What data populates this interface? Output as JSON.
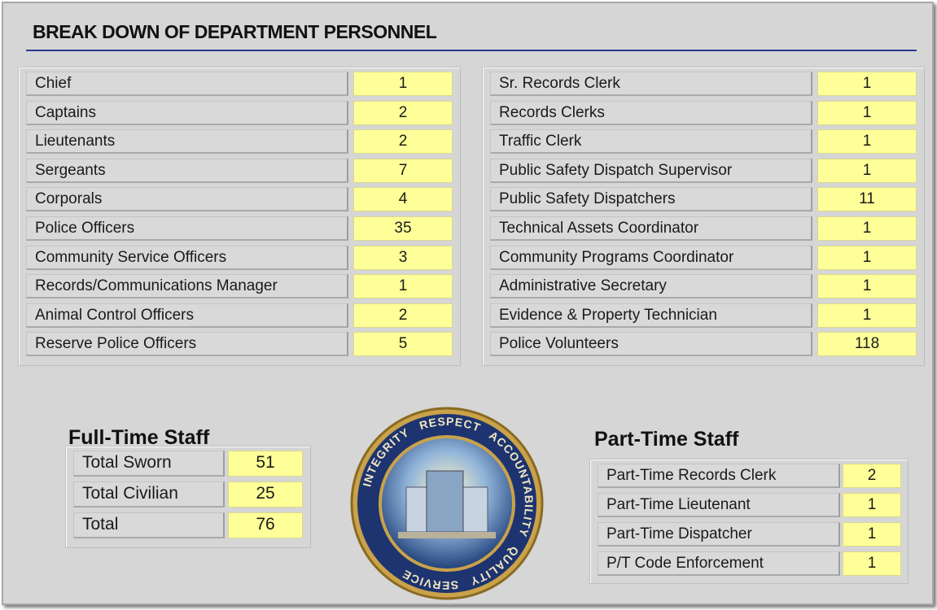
{
  "header": {
    "title": "BREAK DOWN OF DEPARTMENT PERSONNEL"
  },
  "left_table": {
    "rows": [
      [
        "Chief",
        1
      ],
      [
        "Captains",
        2
      ],
      [
        "Lieutenants",
        2
      ],
      [
        "Sergeants",
        7
      ],
      [
        "Corporals",
        4
      ],
      [
        "Police Officers",
        35
      ],
      [
        "Community Service Officers",
        3
      ],
      [
        "Records/Communications Manager",
        1
      ],
      [
        "Animal Control Officers",
        2
      ],
      [
        "Reserve Police Officers",
        5
      ]
    ]
  },
  "right_table": {
    "rows": [
      [
        "Sr. Records Clerk",
        1
      ],
      [
        "Records Clerks",
        1
      ],
      [
        "Traffic Clerk",
        1
      ],
      [
        "Public Safety Dispatch Supervisor",
        1
      ],
      [
        "Public Safety Dispatchers",
        11
      ],
      [
        "Technical Assets Coordinator",
        1
      ],
      [
        "Community Programs Coordinator",
        1
      ],
      [
        "Administrative Secretary",
        1
      ],
      [
        "Evidence & Property Technician",
        1
      ],
      [
        "Police Volunteers",
        118
      ]
    ]
  },
  "full_time": {
    "title": "Full-Time Staff",
    "rows": [
      [
        "Total Sworn",
        51
      ],
      [
        "Total Civilian",
        25
      ],
      [
        "Total",
        76
      ]
    ]
  },
  "part_time": {
    "title": "Part-Time Staff",
    "rows": [
      [
        "Part-Time Records Clerk",
        2
      ],
      [
        "Part-Time Lieutenant",
        1
      ],
      [
        "Part-Time Dispatcher",
        1
      ],
      [
        "P/T Code Enforcement",
        1
      ]
    ]
  },
  "seal": {
    "words": [
      "INTEGRITY",
      "RESPECT",
      "ACCOUNTABILITY",
      "QUALITY",
      "SERVICE"
    ]
  }
}
